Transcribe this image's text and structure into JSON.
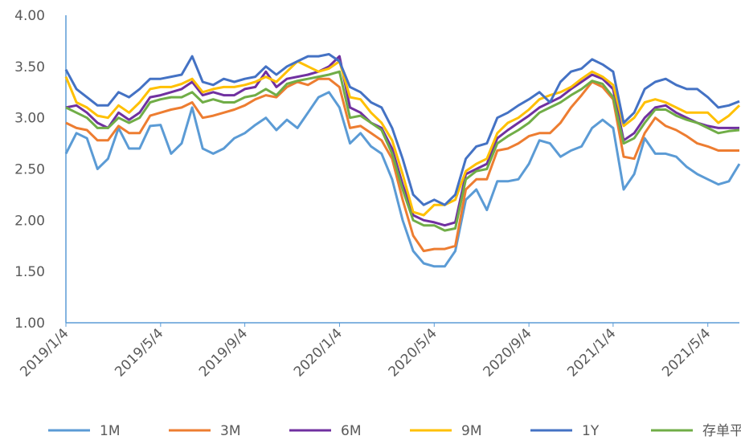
{
  "chart_data": {
    "type": "line",
    "categories": [
      "2019/1/4",
      null,
      null,
      null,
      null,
      null,
      null,
      null,
      null,
      "2019/5/4",
      null,
      null,
      null,
      null,
      null,
      null,
      null,
      "2019/9/4",
      null,
      null,
      null,
      null,
      null,
      null,
      null,
      null,
      "2020/1/4",
      null,
      null,
      null,
      null,
      null,
      null,
      null,
      null,
      "2020/5/4",
      null,
      null,
      null,
      null,
      null,
      null,
      null,
      null,
      "2020/9/4",
      null,
      null,
      null,
      null,
      null,
      null,
      null,
      "2021/1/4",
      null,
      null,
      null,
      null,
      null,
      null,
      null,
      null,
      "2021/5/4",
      null,
      null,
      null
    ],
    "ylim": [
      1,
      4
    ],
    "yticks": [
      {
        "value": 1,
        "label": "1.00"
      },
      {
        "value": 1.5,
        "label": "1.50"
      },
      {
        "value": 2,
        "label": "2.00"
      },
      {
        "value": 2.5,
        "label": "2.50"
      },
      {
        "value": 3,
        "label": "3.00"
      },
      {
        "value": 3.5,
        "label": "3.50"
      },
      {
        "value": 4,
        "label": "4.00"
      }
    ],
    "series": [
      {
        "name": "1M",
        "color": "#5b9bd5",
        "values": [
          2.65,
          2.85,
          2.8,
          2.5,
          2.6,
          2.9,
          2.7,
          2.7,
          2.92,
          2.93,
          2.65,
          2.75,
          3.1,
          2.7,
          2.65,
          2.7,
          2.8,
          2.85,
          2.93,
          3.0,
          2.88,
          2.98,
          2.9,
          3.05,
          3.2,
          3.25,
          3.1,
          2.75,
          2.85,
          2.72,
          2.65,
          2.4,
          2.0,
          1.7,
          1.58,
          1.55,
          1.55,
          1.7,
          2.2,
          2.3,
          2.1,
          2.38,
          2.38,
          2.4,
          2.55,
          2.78,
          2.75,
          2.62,
          2.68,
          2.72,
          2.9,
          2.98,
          2.9,
          2.3,
          2.45,
          2.8,
          2.65,
          2.65,
          2.62,
          2.52,
          2.45,
          2.4,
          2.35,
          2.38,
          2.55
        ]
      },
      {
        "name": "3M",
        "color": "#ed7d31",
        "values": [
          2.95,
          2.9,
          2.88,
          2.78,
          2.78,
          2.92,
          2.85,
          2.85,
          3.02,
          3.05,
          3.08,
          3.1,
          3.15,
          3.0,
          3.02,
          3.05,
          3.08,
          3.12,
          3.18,
          3.22,
          3.2,
          3.3,
          3.35,
          3.32,
          3.38,
          3.38,
          3.3,
          2.9,
          2.92,
          2.85,
          2.78,
          2.6,
          2.2,
          1.85,
          1.7,
          1.72,
          1.72,
          1.75,
          2.3,
          2.4,
          2.4,
          2.68,
          2.7,
          2.75,
          2.82,
          2.85,
          2.85,
          2.95,
          3.1,
          3.22,
          3.35,
          3.3,
          3.18,
          2.62,
          2.6,
          2.85,
          3.0,
          2.92,
          2.88,
          2.82,
          2.75,
          2.72,
          2.68,
          2.68,
          2.68
        ]
      },
      {
        "name": "6M",
        "color": "#7030a0",
        "values": [
          3.1,
          3.12,
          3.05,
          2.95,
          2.9,
          3.05,
          2.98,
          3.05,
          3.2,
          3.22,
          3.25,
          3.28,
          3.35,
          3.22,
          3.25,
          3.22,
          3.22,
          3.28,
          3.3,
          3.45,
          3.3,
          3.38,
          3.4,
          3.42,
          3.45,
          3.5,
          3.6,
          3.1,
          3.05,
          2.95,
          2.9,
          2.7,
          2.35,
          2.05,
          2.0,
          1.98,
          1.95,
          1.98,
          2.45,
          2.5,
          2.55,
          2.8,
          2.88,
          2.95,
          3.02,
          3.1,
          3.15,
          3.2,
          3.28,
          3.35,
          3.42,
          3.38,
          3.28,
          2.78,
          2.85,
          3.0,
          3.1,
          3.12,
          3.05,
          3.0,
          2.95,
          2.92,
          2.9,
          2.9,
          2.9
        ]
      },
      {
        "name": "9M",
        "color": "#ffc000",
        "values": [
          3.4,
          3.15,
          3.1,
          3.02,
          3.0,
          3.12,
          3.05,
          3.15,
          3.28,
          3.3,
          3.3,
          3.33,
          3.38,
          3.25,
          3.28,
          3.3,
          3.3,
          3.32,
          3.35,
          3.4,
          3.35,
          3.45,
          3.55,
          3.5,
          3.45,
          3.48,
          3.55,
          3.2,
          3.18,
          3.05,
          2.95,
          2.78,
          2.45,
          2.08,
          2.05,
          2.15,
          2.15,
          2.2,
          2.48,
          2.55,
          2.6,
          2.85,
          2.95,
          3.0,
          3.08,
          3.18,
          3.22,
          3.25,
          3.3,
          3.38,
          3.45,
          3.4,
          3.32,
          2.92,
          3.0,
          3.15,
          3.18,
          3.15,
          3.1,
          3.05,
          3.05,
          3.05,
          2.95,
          3.02,
          3.12
        ]
      },
      {
        "name": "1Y",
        "color": "#4472c4",
        "values": [
          3.47,
          3.28,
          3.2,
          3.12,
          3.12,
          3.25,
          3.2,
          3.28,
          3.38,
          3.38,
          3.4,
          3.42,
          3.6,
          3.35,
          3.32,
          3.38,
          3.35,
          3.38,
          3.4,
          3.5,
          3.42,
          3.5,
          3.55,
          3.6,
          3.6,
          3.62,
          3.55,
          3.3,
          3.25,
          3.15,
          3.1,
          2.9,
          2.6,
          2.25,
          2.15,
          2.2,
          2.15,
          2.25,
          2.6,
          2.72,
          2.75,
          3.0,
          3.05,
          3.12,
          3.18,
          3.25,
          3.15,
          3.35,
          3.45,
          3.48,
          3.57,
          3.52,
          3.45,
          2.95,
          3.05,
          3.28,
          3.35,
          3.38,
          3.32,
          3.28,
          3.28,
          3.2,
          3.1,
          3.12,
          3.16
        ]
      },
      {
        "name": "存单平均利率",
        "color": "#70ad47",
        "values": [
          3.1,
          3.05,
          3.0,
          2.9,
          2.9,
          3.0,
          2.95,
          3.0,
          3.15,
          3.18,
          3.2,
          3.2,
          3.25,
          3.15,
          3.18,
          3.15,
          3.15,
          3.2,
          3.22,
          3.28,
          3.22,
          3.33,
          3.36,
          3.38,
          3.4,
          3.42,
          3.45,
          3.0,
          3.02,
          2.95,
          2.88,
          2.65,
          2.3,
          2.0,
          1.95,
          1.95,
          1.9,
          1.92,
          2.4,
          2.48,
          2.5,
          2.75,
          2.82,
          2.88,
          2.95,
          3.05,
          3.1,
          3.15,
          3.22,
          3.28,
          3.36,
          3.33,
          3.2,
          2.75,
          2.8,
          2.95,
          3.08,
          3.08,
          3.02,
          2.98,
          2.95,
          2.9,
          2.85,
          2.87,
          2.88
        ]
      }
    ]
  }
}
